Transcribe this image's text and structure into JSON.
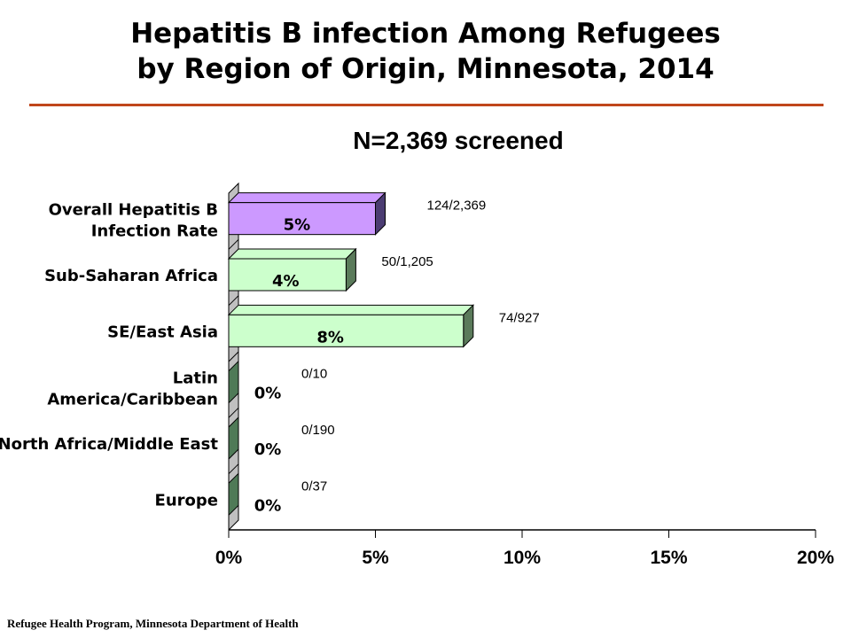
{
  "chart_data": {
    "type": "bar",
    "orientation": "horizontal",
    "title_line1": "Hepatitis B infection Among Refugees",
    "title_line2": "by Region of Origin, Minnesota, 2014",
    "subtitle": "N=2,369 screened",
    "categories": [
      [
        "Overall Hepatitis B",
        "Infection Rate"
      ],
      [
        "Sub-Saharan Africa"
      ],
      [
        "SE/East Asia"
      ],
      [
        "Latin",
        "America/Caribbean"
      ],
      [
        "North Africa/Middle East"
      ],
      [
        "Europe"
      ]
    ],
    "values": [
      5,
      4,
      8,
      0,
      0,
      0
    ],
    "value_labels": [
      "5%",
      "4%",
      "8%",
      "0%",
      "0%",
      "0%"
    ],
    "ratio_labels": [
      "124/2,369",
      "50/1,205",
      "74/927",
      "0/10",
      "0/190",
      "0/37"
    ],
    "xlim": [
      0,
      20
    ],
    "xticks": [
      0,
      5,
      10,
      15,
      20
    ],
    "xtick_labels": [
      "0%",
      "5%",
      "10%",
      "15%",
      "20%"
    ],
    "bar_colors": [
      "#cc99ff",
      "#ccffcc",
      "#ccffcc",
      "#ccffcc",
      "#ccffcc",
      "#ccffcc"
    ],
    "bar_side_colors": [
      "#4b3c72",
      "#5a7a5a",
      "#5a7a5a",
      "#4f7a57",
      "#4f7a57",
      "#4f7a57"
    ]
  },
  "source": "Refugee Health Program, Minnesota Department of Health"
}
